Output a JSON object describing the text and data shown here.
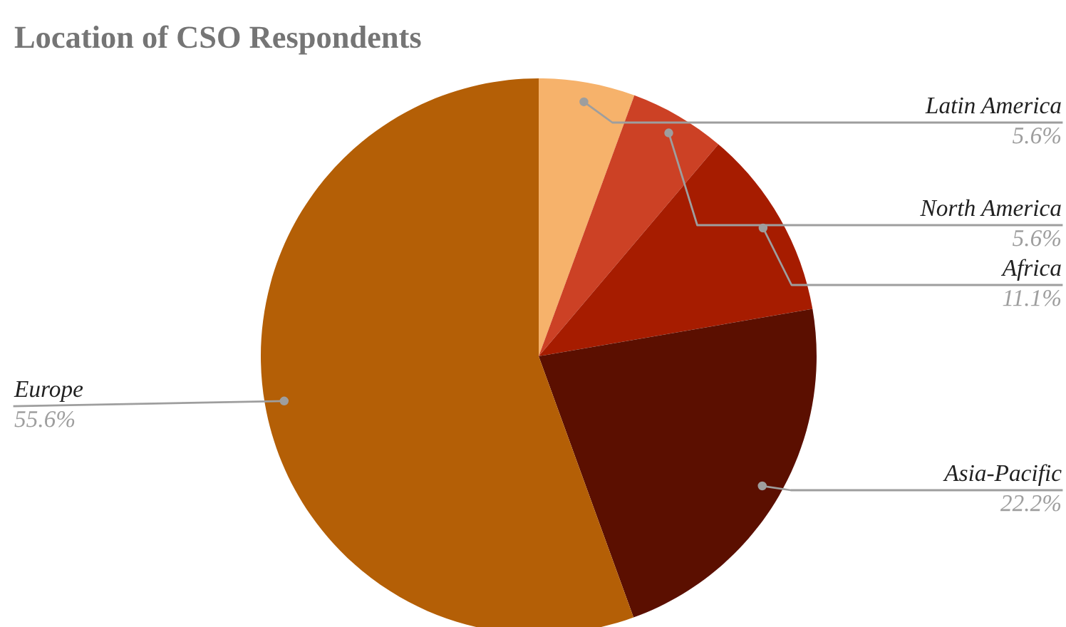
{
  "chart_data": {
    "type": "pie",
    "title": "Location of CSO Respondents",
    "categories": [
      "Latin America",
      "North America",
      "Africa",
      "Asia-Pacific",
      "Europe"
    ],
    "values": [
      5.6,
      5.6,
      11.1,
      22.2,
      55.6
    ],
    "value_labels": [
      "5.6%",
      "5.6%",
      "11.1%",
      "22.2%",
      "55.6%"
    ],
    "colors": [
      "#f6b26b",
      "#cc4125",
      "#a61c00",
      "#5b0f00",
      "#b45f06"
    ],
    "legend": false
  }
}
